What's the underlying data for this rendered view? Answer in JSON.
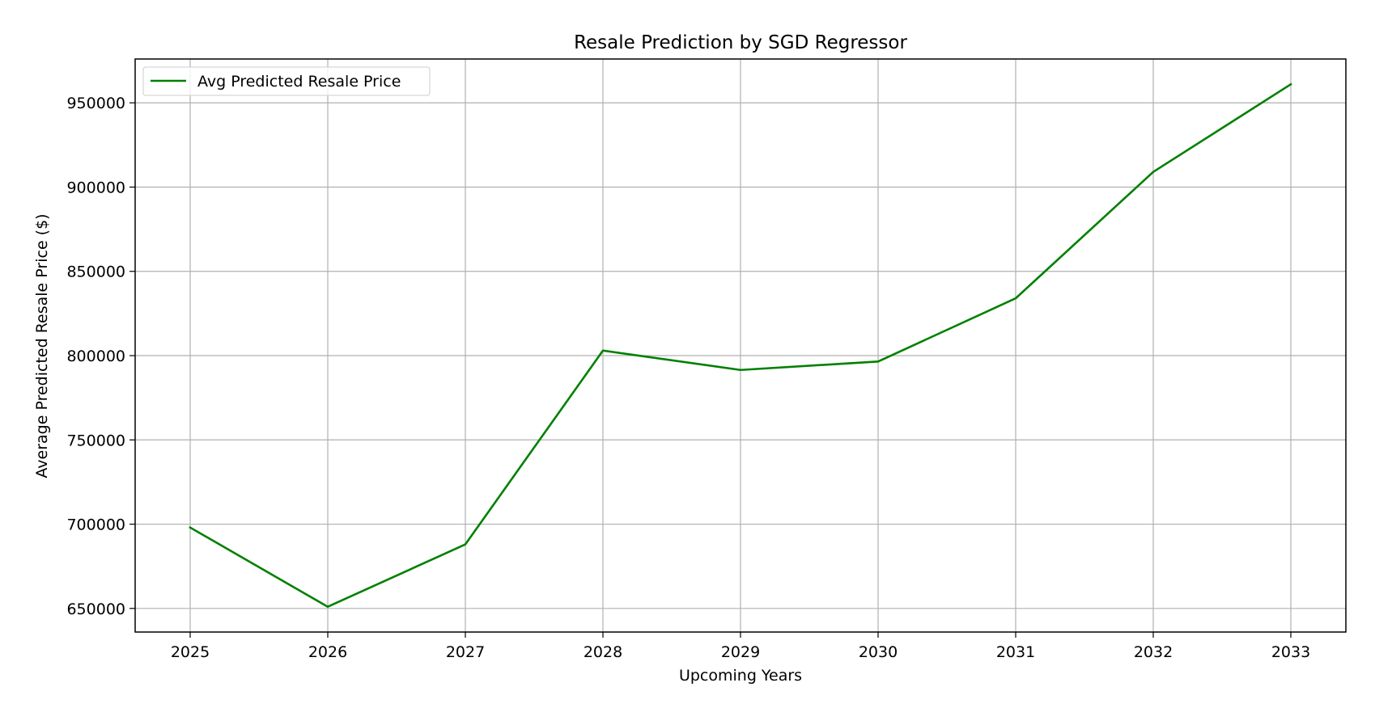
{
  "chart_data": {
    "type": "line",
    "title": "Resale Prediction by SGD Regressor",
    "xlabel": "Upcoming Years",
    "ylabel": "Average Predicted Resale Price ($)",
    "x": [
      2025,
      2026,
      2027,
      2028,
      2029,
      2030,
      2031,
      2032,
      2033
    ],
    "series": [
      {
        "name": "Avg Predicted Resale Price",
        "color": "#008000",
        "values": [
          698000,
          651000,
          688000,
          803000,
          791500,
          796500,
          834000,
          909000,
          961000
        ]
      }
    ],
    "xlim": [
      2024.6,
      2033.4
    ],
    "ylim": [
      636000,
      976000
    ],
    "x_ticks": [
      "2025",
      "2026",
      "2027",
      "2028",
      "2029",
      "2030",
      "2031",
      "2032",
      "2033"
    ],
    "y_ticks": [
      "650000",
      "700000",
      "750000",
      "800000",
      "850000",
      "900000",
      "950000"
    ],
    "grid": true,
    "legend_position": "upper-left"
  }
}
